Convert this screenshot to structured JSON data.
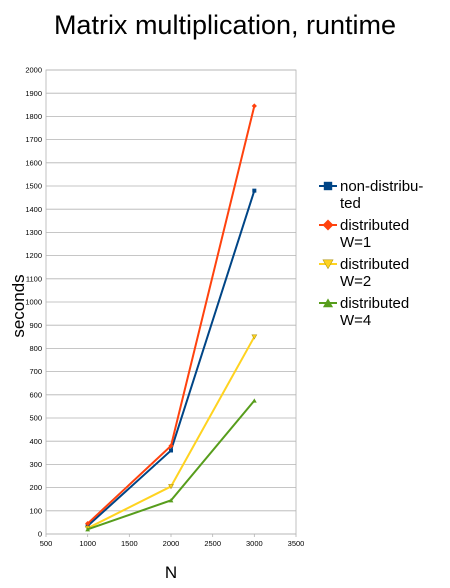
{
  "chart_data": {
    "type": "line",
    "title": "Matrix multiplication, runtime",
    "xlabel": "N",
    "ylabel": "seconds",
    "xlim": [
      500,
      3500
    ],
    "ylim": [
      0,
      2000
    ],
    "xticks": [
      500,
      1000,
      1500,
      2000,
      2500,
      3000,
      3500
    ],
    "yticks": [
      0,
      100,
      200,
      300,
      400,
      500,
      600,
      700,
      800,
      900,
      1000,
      1100,
      1200,
      1300,
      1400,
      1500,
      1600,
      1700,
      1800,
      1900,
      2000
    ],
    "grid": true,
    "legend_position": "right",
    "x": [
      1000,
      2000,
      3000
    ],
    "series": [
      {
        "name": "non-distribu-\nted",
        "values": [
          35,
          360,
          1480
        ],
        "color": "#004586",
        "marker": "square"
      },
      {
        "name": "distributed\nW=1",
        "values": [
          45,
          380,
          1845
        ],
        "color": "#ff420e",
        "marker": "diamond"
      },
      {
        "name": "distributed\nW=2",
        "values": [
          25,
          205,
          850
        ],
        "color": "#ffd320",
        "marker": "triangle-down"
      },
      {
        "name": "distributed\nW=4",
        "values": [
          20,
          145,
          575
        ],
        "color": "#579d1c",
        "marker": "triangle-up"
      }
    ]
  }
}
